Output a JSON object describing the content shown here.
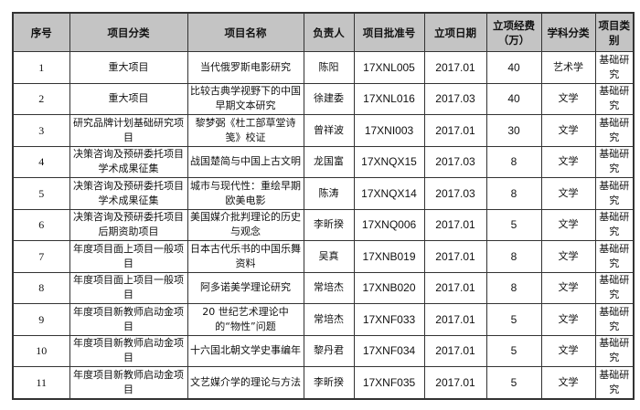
{
  "headers": [
    "序号",
    "项目分类",
    "项目名称",
    "负责人",
    "项目批准号",
    "立项日期",
    "立项经费（万）",
    "学科分类",
    "项目类别"
  ],
  "rows": [
    {
      "no": "1",
      "category": "重大项目",
      "name": "当代俄罗斯电影研究",
      "leader": "陈阳",
      "code": "17XNL005",
      "date": "2017.01",
      "fund": "40",
      "discipline": "艺术学",
      "type": "基础研究"
    },
    {
      "no": "2",
      "category": "重大项目",
      "name": "比较古典学视野下的中国早期文本研究",
      "leader": "徐建委",
      "code": "17XNL016",
      "date": "2017.03",
      "fund": "40",
      "discipline": "文学",
      "type": "基础研究"
    },
    {
      "no": "3",
      "category": "研究品牌计划基础研究项目",
      "name": "黎梦弼《杜工部草堂诗笺》校证",
      "leader": "曾祥波",
      "code": "17XNI003",
      "date": "2017.01",
      "fund": "30",
      "discipline": "文学",
      "type": "基础研究"
    },
    {
      "no": "4",
      "category": "决策咨询及预研委托项目学术成果征集",
      "name": "战国楚简与中国上古文明",
      "leader": "龙国富",
      "code": "17XNQX15",
      "date": "2017.03",
      "fund": "8",
      "discipline": "文学",
      "type": "基础研究"
    },
    {
      "no": "5",
      "category": "决策咨询及预研委托项目学术成果征集",
      "name": "城市与现代性：重绘早期欧美电影",
      "leader": "陈涛",
      "code": "17XNQX14",
      "date": "2017.03",
      "fund": "8",
      "discipline": "文学",
      "type": "基础研究"
    },
    {
      "no": "6",
      "category": "决策咨询及预研委托项目后期资助项目",
      "name": "美国媒介批判理论的历史与观念",
      "leader": "李昕揆",
      "code": "17XNQ006",
      "date": "2017.01",
      "fund": "5",
      "discipline": "文学",
      "type": "基础研究"
    },
    {
      "no": "7",
      "category": "年度项目面上项目一般项目",
      "name": "日本古代乐书的中国乐舞资料",
      "leader": "吴真",
      "code": "17XNB019",
      "date": "2017.01",
      "fund": "8",
      "discipline": "文学",
      "type": "基础研究"
    },
    {
      "no": "8",
      "category": "年度项目面上项目一般项目",
      "name": "阿多诺美学理论研究",
      "leader": "常培杰",
      "code": "17XNB020",
      "date": "2017.01",
      "fund": "8",
      "discipline": "文学",
      "type": "基础研究"
    },
    {
      "no": "9",
      "category": "年度项目新教师启动金项目",
      "name": "20 世纪艺术理论中的“物性”问题",
      "leader": "常培杰",
      "code": "17XNF033",
      "date": "2017.01",
      "fund": "5",
      "discipline": "文学",
      "type": "基础研究"
    },
    {
      "no": "10",
      "category": "年度项目新教师启动金项目",
      "name": "十六国北朝文学史事编年",
      "leader": "黎丹君",
      "code": "17XNF034",
      "date": "2017.01",
      "fund": "5",
      "discipline": "文学",
      "type": "基础研究"
    },
    {
      "no": "11",
      "category": "年度项目新教师启动金项目",
      "name": "文艺媒介学的理论与方法",
      "leader": "李昕揆",
      "code": "17XNF035",
      "date": "2017.01",
      "fund": "5",
      "discipline": "文学",
      "type": "基础研究"
    }
  ]
}
